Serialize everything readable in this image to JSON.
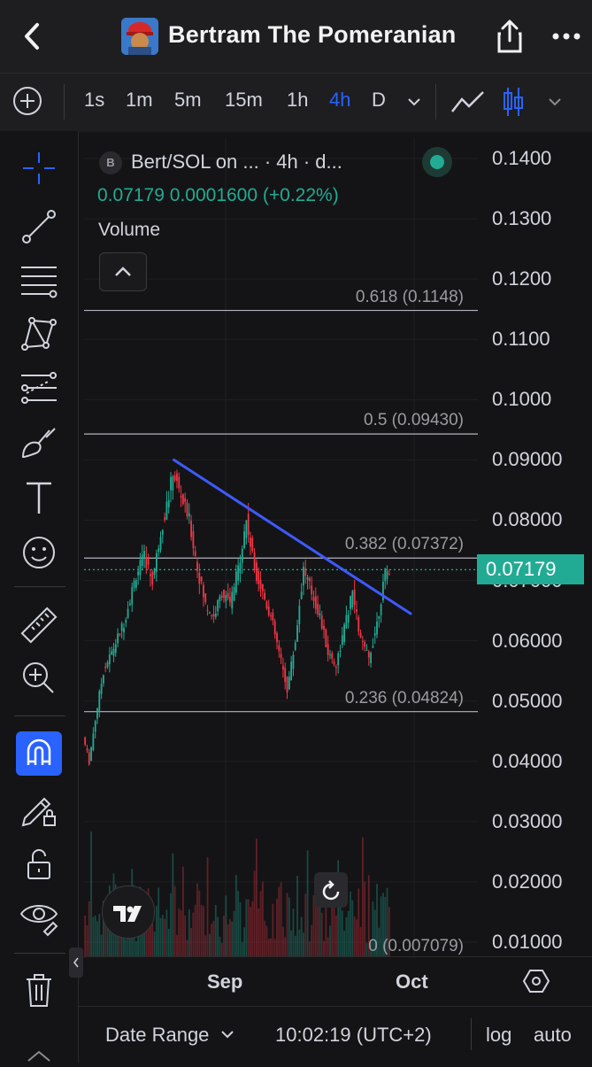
{
  "header": {
    "title": "Bertram The Pomeranian"
  },
  "toolbar": {
    "timeframes": [
      {
        "label": "1s",
        "active": false
      },
      {
        "label": "1m",
        "active": false
      },
      {
        "label": "5m",
        "active": false
      },
      {
        "label": "15m",
        "active": false
      },
      {
        "label": "1h",
        "active": false
      },
      {
        "label": "4h",
        "active": true
      },
      {
        "label": "D",
        "active": false
      }
    ],
    "chart_style": "candles"
  },
  "legend": {
    "badge": "B",
    "symbol": "Bert/SOL on ...",
    "interval": "· 4h · d...",
    "last": "0.07179",
    "change": "0.0001600",
    "change_pct": "(+0.22%)",
    "volume_label": "Volume"
  },
  "price_axis": {
    "labels": [
      "0.1400",
      "0.1300",
      "0.1200",
      "0.1100",
      "0.1000",
      "0.09000",
      "0.08000",
      "0.07000",
      "0.06000",
      "0.05000",
      "0.04000",
      "0.03000",
      "0.02000",
      "0.01000"
    ],
    "last_price": "0.07179"
  },
  "fib_levels": [
    {
      "label": "0.618 (0.1148)",
      "value": 0.1148
    },
    {
      "label": "0.5 (0.09430)",
      "value": 0.0943
    },
    {
      "label": "0.382 (0.07372)",
      "value": 0.07372
    },
    {
      "label": "0.236 (0.04824)",
      "value": 0.04824
    },
    {
      "label": "0 (0.007079)",
      "value": 0.007079
    }
  ],
  "time_axis": {
    "labels": [
      "Sep",
      "Oct"
    ]
  },
  "bottom_bar": {
    "date_range": "Date Range",
    "clock": "10:02:19 (UTC+2)",
    "log": "log",
    "auto": "auto"
  },
  "colors": {
    "up": "#22ab94",
    "down": "#f23645",
    "accent": "#2962ff",
    "trendline": "#3d5afe"
  },
  "chart_data": {
    "type": "candlestick",
    "title": "Bert/SOL",
    "interval": "4h",
    "ylim": [
      0.005,
      0.145
    ],
    "x_ticks": [
      "Sep",
      "Oct"
    ],
    "price_path": [
      {
        "t": 0,
        "price": 0.044
      },
      {
        "t": 3,
        "price": 0.04
      },
      {
        "t": 6,
        "price": 0.047
      },
      {
        "t": 10,
        "price": 0.055
      },
      {
        "t": 14,
        "price": 0.058
      },
      {
        "t": 20,
        "price": 0.063
      },
      {
        "t": 26,
        "price": 0.071
      },
      {
        "t": 30,
        "price": 0.074
      },
      {
        "t": 34,
        "price": 0.07
      },
      {
        "t": 38,
        "price": 0.078
      },
      {
        "t": 42,
        "price": 0.084
      },
      {
        "t": 44,
        "price": 0.088
      },
      {
        "t": 48,
        "price": 0.084
      },
      {
        "t": 52,
        "price": 0.08
      },
      {
        "t": 56,
        "price": 0.072
      },
      {
        "t": 60,
        "price": 0.066
      },
      {
        "t": 64,
        "price": 0.064
      },
      {
        "t": 68,
        "price": 0.068
      },
      {
        "t": 72,
        "price": 0.066
      },
      {
        "t": 76,
        "price": 0.072
      },
      {
        "t": 80,
        "price": 0.08
      },
      {
        "t": 84,
        "price": 0.072
      },
      {
        "t": 88,
        "price": 0.068
      },
      {
        "t": 92,
        "price": 0.064
      },
      {
        "t": 96,
        "price": 0.058
      },
      {
        "t": 100,
        "price": 0.052
      },
      {
        "t": 104,
        "price": 0.06
      },
      {
        "t": 108,
        "price": 0.072
      },
      {
        "t": 112,
        "price": 0.068
      },
      {
        "t": 116,
        "price": 0.064
      },
      {
        "t": 120,
        "price": 0.058
      },
      {
        "t": 124,
        "price": 0.056
      },
      {
        "t": 128,
        "price": 0.062
      },
      {
        "t": 132,
        "price": 0.068
      },
      {
        "t": 136,
        "price": 0.06
      },
      {
        "t": 140,
        "price": 0.057
      },
      {
        "t": 144,
        "price": 0.063
      },
      {
        "t": 148,
        "price": 0.071
      },
      {
        "t": 150,
        "price": 0.07179
      }
    ],
    "trendline": [
      {
        "t": 44,
        "price": 0.09
      },
      {
        "t": 160,
        "price": 0.0645
      }
    ],
    "last_price": 0.07179
  }
}
